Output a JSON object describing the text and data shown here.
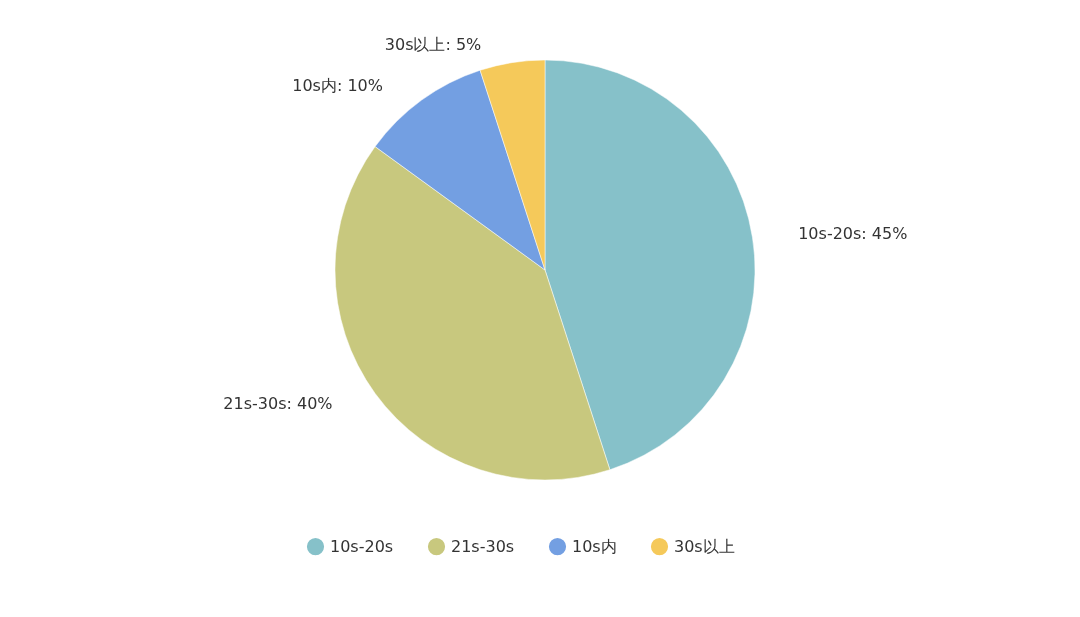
{
  "chart_data": {
    "type": "pie",
    "categories": [
      "10s-20s",
      "21s-30s",
      "10s内",
      "30s以上"
    ],
    "values": [
      45,
      40,
      10,
      5
    ],
    "value_labels": [
      "10s-20s: 45%",
      "21s-30s: 40%",
      "10s内: 10%",
      "30s以上: 5%"
    ],
    "colors": [
      "#86c1c9",
      "#c8c87e",
      "#739fe2",
      "#f5c95a"
    ],
    "legend": "bottom"
  }
}
